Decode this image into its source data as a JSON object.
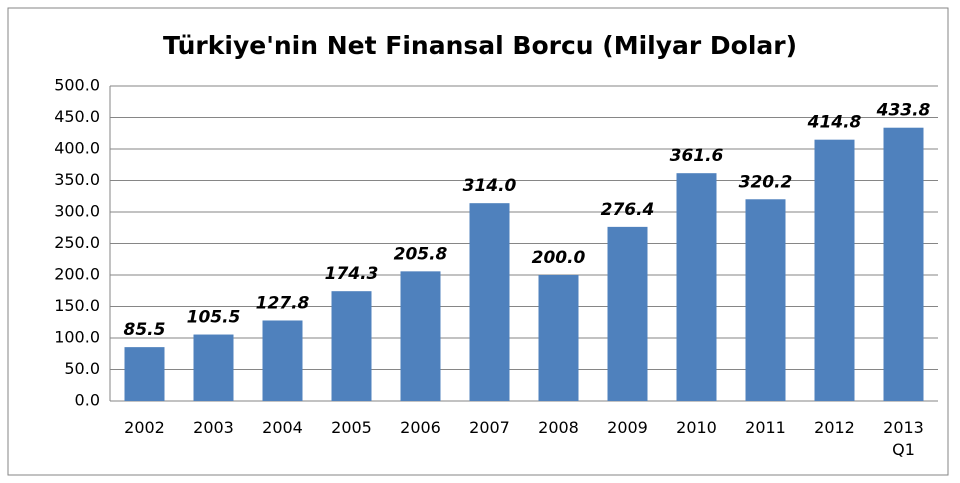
{
  "chart_data": {
    "type": "bar",
    "title": "Türkiye'nin Net Finansal Borcu (Milyar Dolar)",
    "categories": [
      "2002",
      "2003",
      "2004",
      "2005",
      "2006",
      "2007",
      "2008",
      "2009",
      "2010",
      "2011",
      "2012",
      "2013 Q1"
    ],
    "values": [
      85.5,
      105.5,
      127.8,
      174.3,
      205.8,
      314.0,
      200.0,
      276.4,
      361.6,
      320.2,
      414.8,
      433.8
    ],
    "value_labels": [
      "85.5",
      "105.5",
      "127.8",
      "174.3",
      "205.8",
      "314.0",
      "200.0",
      "276.4",
      "361.6",
      "320.2",
      "414.8",
      "433.8"
    ],
    "color": "#4f81bd",
    "ylim": [
      0,
      500
    ],
    "yticks": [
      {
        "value": 0,
        "label": "0.0"
      },
      {
        "value": 50,
        "label": "50.0"
      },
      {
        "value": 100,
        "label": "100.0"
      },
      {
        "value": 150,
        "label": "150.0"
      },
      {
        "value": 200,
        "label": "200.0"
      },
      {
        "value": 250,
        "label": "250.0"
      },
      {
        "value": 300,
        "label": "300.0"
      },
      {
        "value": 350,
        "label": "350.0"
      },
      {
        "value": 400,
        "label": "400.0"
      },
      {
        "value": 450,
        "label": "450.0"
      },
      {
        "value": 500,
        "label": "500.0"
      }
    ],
    "grid": true
  }
}
